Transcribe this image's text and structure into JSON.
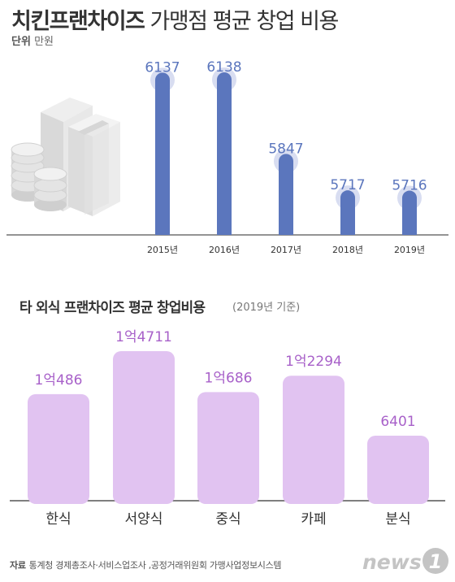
{
  "title_bold": "치킨프랜차이즈",
  "title_rest": "가맹점 평균 창업 비용",
  "unit_label": "단위",
  "unit_value": "만원",
  "subtitle": "타 외식 프랜차이즈 평균 창업비용",
  "subnote": "(2019년 기준)",
  "source_label": "자료",
  "source_text": "통계청 경제총조사·서비스업조사 ,공정거래위원회 가맹사업정보시스템",
  "logo_text": "news",
  "logo_num": "1",
  "colors": {
    "top_bar": "#5b76bd",
    "top_halo": "#c7cfeb",
    "top_value": "#5b76bd",
    "bottom_bar": "#e1c3f1",
    "bottom_value": "#a861c9",
    "baseline": "#555555"
  },
  "icon": "money-stack-and-coins-icon",
  "chart_data": [
    {
      "type": "bar",
      "categories": [
        "2015년",
        "2016년",
        "2017년",
        "2018년",
        "2019년"
      ],
      "values": [
        6137,
        6138,
        5847,
        5717,
        5716
      ],
      "value_labels": [
        "6137",
        "6138",
        "5847",
        "5717",
        "5716"
      ],
      "title": "치킨프랜차이즈 가맹점 평균 창업 비용",
      "unit": "만원",
      "ylim": [
        0,
        6138
      ]
    },
    {
      "type": "bar",
      "categories": [
        "한식",
        "서양식",
        "중식",
        "카페",
        "분식"
      ],
      "values": [
        10486,
        14711,
        10686,
        12294,
        6401
      ],
      "value_labels": [
        "1억486",
        "1억4711",
        "1억686",
        "1억2294",
        "6401"
      ],
      "title": "타 외식 프랜차이즈 평균 창업비용",
      "unit": "만원",
      "ylim": [
        0,
        14711
      ]
    }
  ]
}
